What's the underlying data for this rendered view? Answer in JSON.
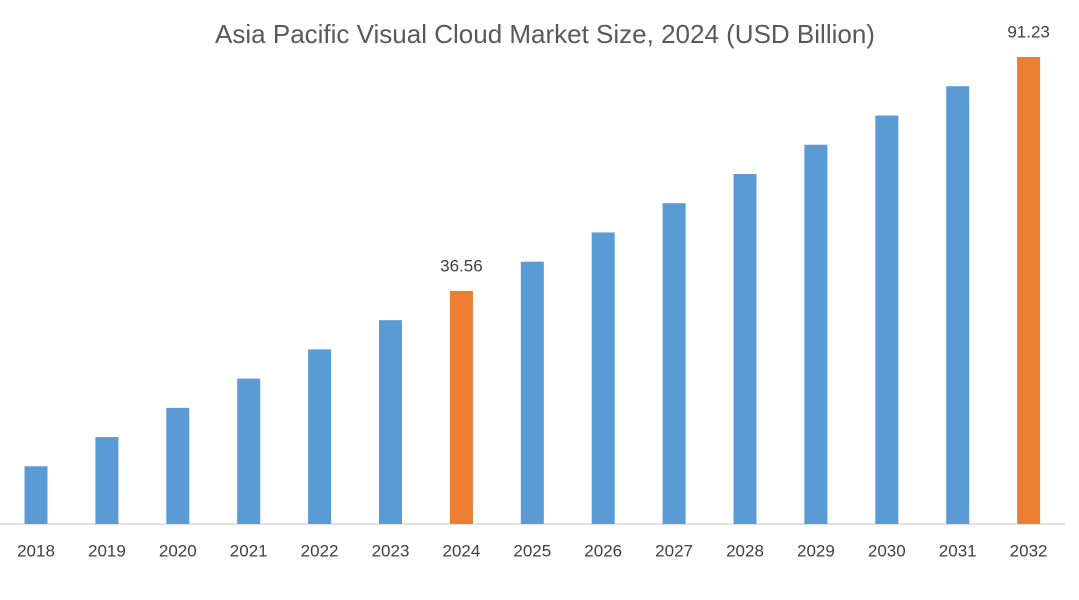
{
  "chart_data": {
    "type": "bar",
    "title": "Asia Pacific Visual Cloud Market Size, 2024 (USD Billion)",
    "categories": [
      "2018",
      "2019",
      "2020",
      "2021",
      "2022",
      "2023",
      "2024",
      "2025",
      "2026",
      "2027",
      "2028",
      "2029",
      "2030",
      "2031",
      "2032"
    ],
    "values": [
      -4.42,
      2.41,
      9.24,
      16.08,
      22.91,
      29.73,
      36.56,
      43.4,
      50.23,
      57.07,
      63.9,
      70.73,
      77.56,
      84.4,
      91.23
    ],
    "colors": [
      "#5b9bd5",
      "#5b9bd5",
      "#5b9bd5",
      "#5b9bd5",
      "#5b9bd5",
      "#5b9bd5",
      "#ed7d31",
      "#5b9bd5",
      "#5b9bd5",
      "#5b9bd5",
      "#5b9bd5",
      "#5b9bd5",
      "#5b9bd5",
      "#5b9bd5",
      "#ed7d31"
    ],
    "labeled": [
      6,
      14
    ],
    "ylim": [
      -17.9,
      91.23
    ]
  }
}
